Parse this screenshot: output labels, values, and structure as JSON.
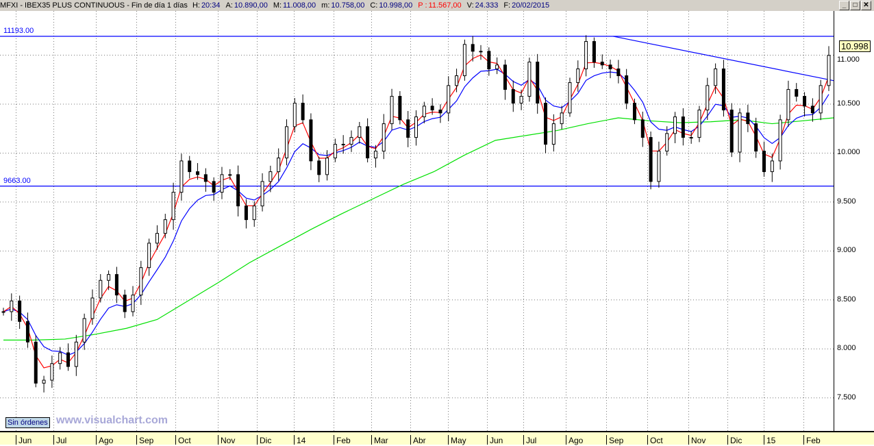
{
  "window": {
    "symbol": "MFXI - IBEX35 PLUS CONTINUOUS - Fin de día 1 días",
    "fields": [
      {
        "label": "H:",
        "value": "20:34",
        "color": "#000080"
      },
      {
        "label": "A:",
        "value": "10.890,00",
        "color": "#000080"
      },
      {
        "label": "M:",
        "value": "11.008,00",
        "color": "#000080"
      },
      {
        "label": "m:",
        "value": "10.758,00",
        "color": "#000080"
      },
      {
        "label": "C:",
        "value": "10.998,00",
        "color": "#000080"
      },
      {
        "label": "P :",
        "value": "11.567,00",
        "color": "#ff0000"
      },
      {
        "label": "V:",
        "value": "24.333",
        "color": "#000080"
      },
      {
        "label": "F:",
        "value": "20/02/2015",
        "color": "#000080"
      }
    ],
    "buttons": {
      "minimize": "_",
      "maximize": "□",
      "close": "✕"
    }
  },
  "status": {
    "orders": "Sin órdenes",
    "watermark": "www.visualchart.com"
  },
  "chart_data": {
    "type": "candlestick",
    "x_range": [
      "2013-05-24",
      "2015-02-20"
    ],
    "x_ticks": [
      "Jun",
      "Jul",
      "Ago",
      "Sep",
      "Oct",
      "Nov",
      "Dic",
      "14",
      "Feb",
      "Mar",
      "Abr",
      "May",
      "Jun",
      "Jul",
      "Ago",
      "Sep",
      "Oct",
      "Nov",
      "Dic",
      "15",
      "Feb"
    ],
    "y_ticks": [
      "11.000",
      "10.500",
      "10.000",
      "9.500",
      "9.000",
      "8.500",
      "8.000",
      "7.500"
    ],
    "y_tick_values": [
      11000,
      10500,
      10000,
      9500,
      9000,
      8500,
      8000,
      7500
    ],
    "ylim": [
      7250,
      11470
    ],
    "grid": true,
    "last_price": "10.998",
    "closes": [
      8380,
      8490,
      8280,
      8070,
      7650,
      7680,
      7850,
      7960,
      7820,
      8070,
      8310,
      8520,
      8700,
      8760,
      8550,
      8380,
      8550,
      8830,
      9080,
      9180,
      9320,
      9600,
      9920,
      9810,
      9780,
      9710,
      9600,
      9780,
      9780,
      9460,
      9320,
      9460,
      9710,
      9810,
      9950,
      10270,
      10510,
      10340,
      9920,
      9780,
      9950,
      10090,
      10090,
      10160,
      10270,
      9950,
      10020,
      10300,
      10580,
      10340,
      10160,
      10370,
      10480,
      10440,
      10410,
      10690,
      10790,
      11110,
      11040,
      11040,
      10860,
      10900,
      10650,
      10510,
      10580,
      10930,
      10510,
      10090,
      10300,
      10410,
      10720,
      10860,
      11140,
      10930,
      10900,
      10860,
      10790,
      10510,
      10340,
      10160,
      9710,
      10020,
      10200,
      10370,
      10160,
      10160,
      10440,
      10690,
      10860,
      10440,
      10010,
      10410,
      10300,
      10020,
      9810,
      9920,
      10340,
      10650,
      10580,
      10480,
      10410,
      10690,
      10998
    ],
    "ma_long": {
      "color": "#00e000",
      "values": [
        8090,
        8090,
        8100,
        8150,
        8210,
        8300,
        8490,
        8680,
        8880,
        9050,
        9220,
        9380,
        9530,
        9680,
        9810,
        9980,
        10130,
        10180,
        10230,
        10300,
        10360,
        10330,
        10310,
        10320,
        10340,
        10300,
        10330,
        10360
      ]
    },
    "ma_short": {
      "color": "#ff0000"
    },
    "ma_mid": {
      "color": "#0000ff"
    },
    "lines": [
      {
        "label": "11193.00",
        "value": 11193,
        "color": "#0000ff"
      },
      {
        "label": "9663.00",
        "value": 9663,
        "color": "#0000ff"
      }
    ],
    "trendline": {
      "from": [
        "2014-09-04",
        11193
      ],
      "to": [
        "2015-02-20",
        10740
      ],
      "color": "#0000ff"
    }
  }
}
